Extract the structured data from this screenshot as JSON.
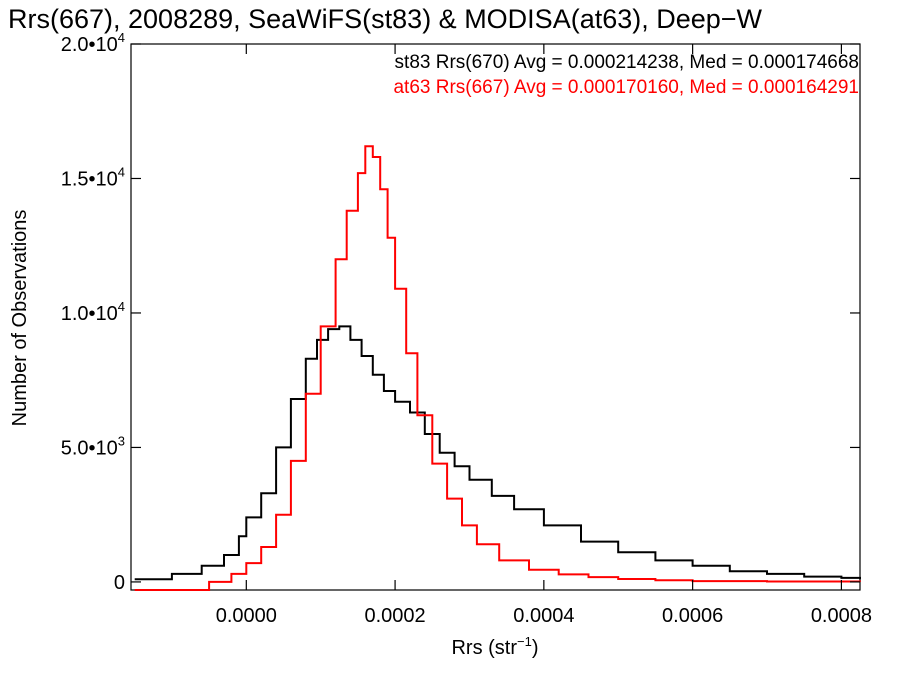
{
  "chart_data": {
    "type": "line",
    "title": "Rrs(667), 2008289, SeaWiFS(st83) & MODISA(at63), Deep−W",
    "xlabel_main": "Rrs (str",
    "xlabel_sup": "−1",
    "xlabel_close": ")",
    "ylabel": "Number of Observations",
    "xlim": [
      -0.000155,
      0.000825
    ],
    "ylim": [
      -300,
      20000
    ],
    "x_ticks": [
      {
        "value": 0.0,
        "label": "0.0000"
      },
      {
        "value": 0.0002,
        "label": "0.0002"
      },
      {
        "value": 0.0004,
        "label": "0.0004"
      },
      {
        "value": 0.0006,
        "label": "0.0006"
      },
      {
        "value": 0.0008,
        "label": "0.0008"
      }
    ],
    "y_ticks": [
      {
        "value": 0,
        "mantissa": "0",
        "exp": ""
      },
      {
        "value": 5000,
        "mantissa": "5.0•10",
        "exp": "3"
      },
      {
        "value": 10000,
        "mantissa": "1.0•10",
        "exp": "4"
      },
      {
        "value": 15000,
        "mantissa": "1.5•10",
        "exp": "4"
      },
      {
        "value": 20000,
        "mantissa": "2.0•10",
        "exp": "4"
      }
    ],
    "annotations": [
      {
        "text": "st83 Rrs(670) Avg = 0.000214238, Med = 0.000174668",
        "color": "#000000"
      },
      {
        "text": "at63 Rrs(667) Avg = 0.000170160, Med = 0.000164291",
        "color": "#ff0000"
      }
    ],
    "series": [
      {
        "id": "st83",
        "color": "#000000",
        "x": [
          -0.00015,
          -0.0001,
          -6e-05,
          -3e-05,
          -1e-05,
          0.0,
          2e-05,
          4e-05,
          6e-05,
          8e-05,
          9.5e-05,
          0.00011,
          0.000125,
          0.00014,
          0.000155,
          0.00017,
          0.000185,
          0.0002,
          0.00022,
          0.00024,
          0.00026,
          0.00028,
          0.0003,
          0.00033,
          0.00036,
          0.0004,
          0.00045,
          0.0005,
          0.00055,
          0.0006,
          0.00065,
          0.0007,
          0.00075,
          0.0008,
          0.000825
        ],
        "y": [
          100,
          300,
          600,
          1000,
          1700,
          2400,
          3300,
          5000,
          6800,
          8300,
          9000,
          9400,
          9500,
          9000,
          8400,
          7700,
          7100,
          6700,
          6300,
          5500,
          4800,
          4300,
          3800,
          3200,
          2700,
          2100,
          1500,
          1100,
          800,
          600,
          400,
          300,
          200,
          150,
          100
        ]
      },
      {
        "id": "at63",
        "color": "#ff0000",
        "x": [
          -0.00015,
          -8e-05,
          -5e-05,
          -2e-05,
          0.0,
          2e-05,
          4e-05,
          6e-05,
          8e-05,
          0.0001,
          0.00012,
          0.000135,
          0.00015,
          0.00016,
          0.00017,
          0.00018,
          0.00019,
          0.0002,
          0.000215,
          0.00023,
          0.00025,
          0.00027,
          0.00029,
          0.00031,
          0.00034,
          0.00038,
          0.00042,
          0.00046,
          0.0005,
          0.00055,
          0.0006,
          0.0007,
          0.000825
        ],
        "y": [
          -300,
          -300,
          0,
          300,
          700,
          1300,
          2500,
          4500,
          7000,
          9500,
          12000,
          13800,
          15200,
          16200,
          15800,
          14600,
          12800,
          10900,
          8500,
          6200,
          4400,
          3100,
          2100,
          1400,
          800,
          450,
          280,
          180,
          110,
          60,
          30,
          15,
          5
        ]
      }
    ]
  }
}
